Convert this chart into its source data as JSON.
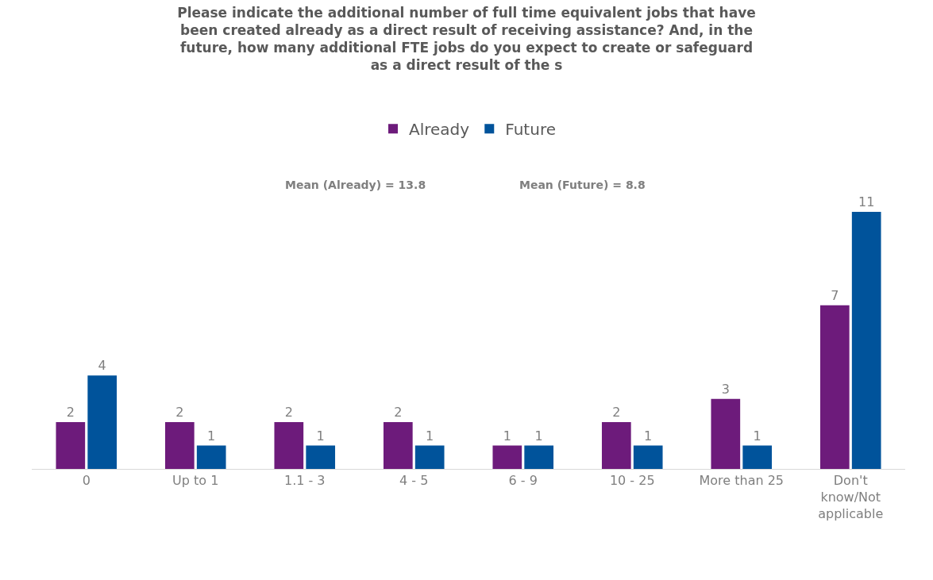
{
  "chart_data": {
    "type": "bar",
    "title": "Please indicate the additional number of full time equivalent jobs that have\nbeen created already as a direct result of receiving assistance? And, in the\nfuture, how many additional FTE jobs do you expect to create or safeguard\nas a direct result of the s",
    "categories": [
      "0",
      "Up to 1",
      "1.1 - 3",
      "4 - 5",
      "6 - 9",
      "10 - 25",
      "More than 25",
      "Don't know/Not applicable"
    ],
    "series": [
      {
        "name": "Already",
        "color": "#6d1b7b",
        "values": [
          2,
          2,
          2,
          2,
          1,
          2,
          3,
          7
        ]
      },
      {
        "name": "Future",
        "color": "#00539b",
        "values": [
          4,
          1,
          1,
          1,
          1,
          1,
          1,
          11
        ]
      }
    ],
    "data_labels": true,
    "legend": "top",
    "annotations": [
      "Mean (Already) = 13.8",
      "Mean (Future) = 8.8"
    ]
  }
}
